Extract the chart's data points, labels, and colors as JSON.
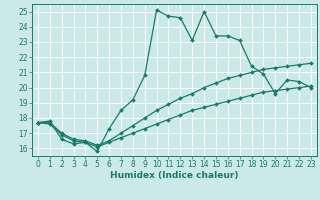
{
  "xlabel": "Humidex (Indice chaleur)",
  "ylabel": "",
  "xlim": [
    -0.5,
    23.5
  ],
  "ylim": [
    15.5,
    25.5
  ],
  "xticks": [
    0,
    1,
    2,
    3,
    4,
    5,
    6,
    7,
    8,
    9,
    10,
    11,
    12,
    13,
    14,
    15,
    16,
    17,
    18,
    19,
    20,
    21,
    22,
    23
  ],
  "yticks": [
    16,
    17,
    18,
    19,
    20,
    21,
    22,
    23,
    24,
    25
  ],
  "background_color": "#cce9e9",
  "line_color": "#1a7a6a",
  "grid_color": "#ffffff",
  "line1_x": [
    0,
    1,
    2,
    3,
    4,
    5,
    6,
    7,
    8,
    9,
    10,
    11,
    12,
    13,
    14,
    15,
    16,
    17,
    18,
    19,
    20,
    21,
    22,
    23
  ],
  "line1_y": [
    17.7,
    17.8,
    16.6,
    16.3,
    16.4,
    15.8,
    17.3,
    18.5,
    19.2,
    20.8,
    25.1,
    24.7,
    24.6,
    23.1,
    25.0,
    23.4,
    23.4,
    23.1,
    21.4,
    20.9,
    19.6,
    20.5,
    20.4,
    20.0
  ],
  "line2_x": [
    0,
    1,
    2,
    3,
    4,
    5,
    6,
    7,
    8,
    9,
    10,
    11,
    12,
    13,
    14,
    15,
    16,
    17,
    18,
    19,
    20,
    21,
    22,
    23
  ],
  "line2_y": [
    17.7,
    17.7,
    17.0,
    16.6,
    16.5,
    16.2,
    16.5,
    17.0,
    17.5,
    18.0,
    18.5,
    18.9,
    19.3,
    19.6,
    20.0,
    20.3,
    20.6,
    20.8,
    21.0,
    21.2,
    21.3,
    21.4,
    21.5,
    21.6
  ],
  "line3_x": [
    0,
    1,
    2,
    3,
    4,
    5,
    6,
    7,
    8,
    9,
    10,
    11,
    12,
    13,
    14,
    15,
    16,
    17,
    18,
    19,
    20,
    21,
    22,
    23
  ],
  "line3_y": [
    17.7,
    17.6,
    16.9,
    16.5,
    16.4,
    16.1,
    16.4,
    16.7,
    17.0,
    17.3,
    17.6,
    17.9,
    18.2,
    18.5,
    18.7,
    18.9,
    19.1,
    19.3,
    19.5,
    19.7,
    19.8,
    19.9,
    20.0,
    20.1
  ],
  "tick_fontsize": 5.5,
  "xlabel_fontsize": 6.5
}
